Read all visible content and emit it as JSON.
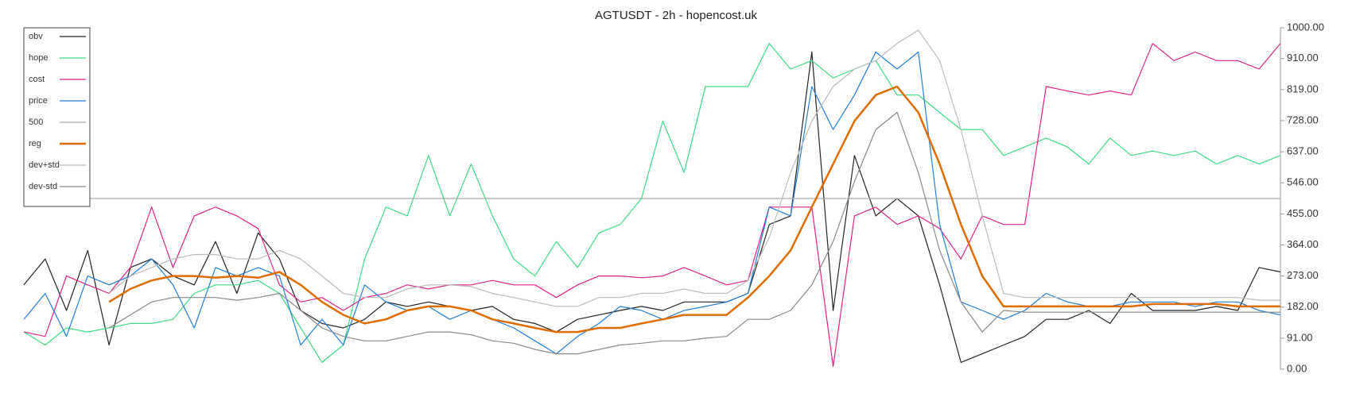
{
  "chart_data": {
    "type": "line",
    "title": "AGTUSDT - 2h - hopencost.uk",
    "ylim": [
      0,
      1000
    ],
    "yticks": [
      {
        "value": 0,
        "label": "0.00"
      },
      {
        "value": 91,
        "label": "91.00"
      },
      {
        "value": 182,
        "label": "182.00"
      },
      {
        "value": 273,
        "label": "273.00"
      },
      {
        "value": 364,
        "label": "364.00"
      },
      {
        "value": 455,
        "label": "455.00"
      },
      {
        "value": 546,
        "label": "546.00"
      },
      {
        "value": 637,
        "label": "637.00"
      },
      {
        "value": 728,
        "label": "728.00"
      },
      {
        "value": 819,
        "label": "819.00"
      },
      {
        "value": 910,
        "label": "910.00"
      },
      {
        "value": 1000,
        "label": "1000.00"
      }
    ],
    "legend": "upper left",
    "series": [
      {
        "name": "obv",
        "color": "#222222",
        "values": [
          247,
          323,
          172,
          348,
          71,
          298,
          323,
          273,
          247,
          374,
          222,
          399,
          323,
          172,
          134,
          121,
          146,
          197,
          184,
          197,
          184,
          172,
          184,
          146,
          134,
          109,
          146,
          159,
          172,
          184,
          172,
          197,
          197,
          197,
          222,
          424,
          449,
          929,
          172,
          626,
          449,
          500,
          449,
          247,
          20,
          45,
          71,
          96,
          146,
          146,
          172,
          134,
          222,
          172,
          172,
          172,
          184,
          172,
          298,
          285
        ]
      },
      {
        "name": "hope",
        "color": "#3ddc84",
        "values": [
          109,
          71,
          121,
          109,
          121,
          134,
          134,
          146,
          222,
          247,
          247,
          260,
          222,
          121,
          20,
          71,
          323,
          475,
          449,
          626,
          449,
          601,
          449,
          323,
          273,
          374,
          298,
          399,
          424,
          500,
          727,
          576,
          828,
          828,
          828,
          954,
          879,
          904,
          853,
          879,
          904,
          803,
          803,
          752,
          702,
          702,
          626,
          651,
          677,
          651,
          601,
          677,
          626,
          639,
          626,
          639,
          601,
          626,
          601,
          626
        ]
      },
      {
        "name": "cost",
        "color": "#e0218a",
        "values": [
          109,
          96,
          273,
          247,
          222,
          298,
          475,
          298,
          449,
          475,
          449,
          412,
          247,
          197,
          210,
          172,
          210,
          222,
          247,
          235,
          247,
          247,
          260,
          247,
          247,
          210,
          247,
          273,
          273,
          268,
          273,
          298,
          273,
          247,
          260,
          475,
          475,
          475,
          8,
          449,
          475,
          424,
          449,
          412,
          323,
          449,
          424,
          424,
          828,
          815,
          803,
          815,
          803,
          954,
          904,
          929,
          904,
          904,
          879,
          954
        ]
      },
      {
        "name": "price",
        "color": "#1f7fd8",
        "values": [
          146,
          222,
          96,
          273,
          247,
          273,
          323,
          247,
          121,
          298,
          273,
          298,
          273,
          71,
          146,
          71,
          247,
          197,
          172,
          184,
          146,
          172,
          146,
          121,
          83,
          45,
          96,
          134,
          184,
          172,
          146,
          172,
          184,
          197,
          222,
          475,
          449,
          828,
          702,
          803,
          929,
          879,
          929,
          424,
          197,
          172,
          146,
          172,
          222,
          197,
          184,
          184,
          197,
          197,
          197,
          184,
          197,
          197,
          172,
          159
        ]
      },
      {
        "name": "500",
        "color": "#aaaaaa",
        "values": [
          500,
          500,
          500,
          500,
          500,
          500,
          500,
          500,
          500,
          500,
          500,
          500,
          500,
          500,
          500,
          500,
          500,
          500,
          500,
          500,
          500,
          500,
          500,
          500,
          500,
          500,
          500,
          500,
          500,
          500,
          500,
          500,
          500,
          500,
          500,
          500,
          500,
          500,
          500,
          500,
          500,
          500,
          500,
          500,
          500,
          500,
          500,
          500,
          500,
          500,
          500,
          500,
          500,
          500,
          500,
          500,
          500,
          500,
          500,
          500
        ]
      },
      {
        "name": "reg",
        "color": "#e06c00",
        "width": 2.5,
        "values": [
          null,
          null,
          null,
          null,
          197,
          235,
          260,
          273,
          273,
          268,
          273,
          268,
          285,
          247,
          197,
          159,
          134,
          146,
          172,
          184,
          184,
          172,
          146,
          134,
          121,
          109,
          109,
          121,
          121,
          134,
          146,
          159,
          159,
          159,
          210,
          273,
          348,
          475,
          601,
          727,
          803,
          828,
          752,
          601,
          424,
          273,
          184,
          184,
          184,
          184,
          184,
          184,
          184,
          191,
          191,
          191,
          191,
          184,
          184,
          184
        ]
      },
      {
        "name": "dev+std",
        "color": "#bbbbbb",
        "values": [
          null,
          null,
          null,
          null,
          222,
          273,
          298,
          323,
          336,
          336,
          323,
          323,
          348,
          323,
          273,
          222,
          210,
          210,
          235,
          247,
          247,
          242,
          222,
          210,
          197,
          184,
          184,
          210,
          210,
          222,
          222,
          235,
          222,
          222,
          260,
          386,
          576,
          727,
          828,
          879,
          904,
          954,
          993,
          904,
          702,
          449,
          222,
          210,
          210,
          210,
          210,
          210,
          210,
          210,
          210,
          210,
          210,
          210,
          202,
          202
        ]
      },
      {
        "name": "dev-std",
        "color": "#888888",
        "values": [
          null,
          null,
          null,
          null,
          121,
          159,
          197,
          210,
          210,
          210,
          202,
          210,
          222,
          172,
          121,
          96,
          83,
          83,
          96,
          109,
          109,
          101,
          83,
          76,
          58,
          45,
          45,
          58,
          71,
          76,
          83,
          83,
          91,
          96,
          146,
          146,
          172,
          247,
          374,
          550,
          702,
          752,
          576,
          348,
          197,
          109,
          172,
          167,
          167,
          167,
          167,
          167,
          167,
          167,
          167,
          167,
          167,
          167,
          167,
          167
        ]
      }
    ]
  }
}
